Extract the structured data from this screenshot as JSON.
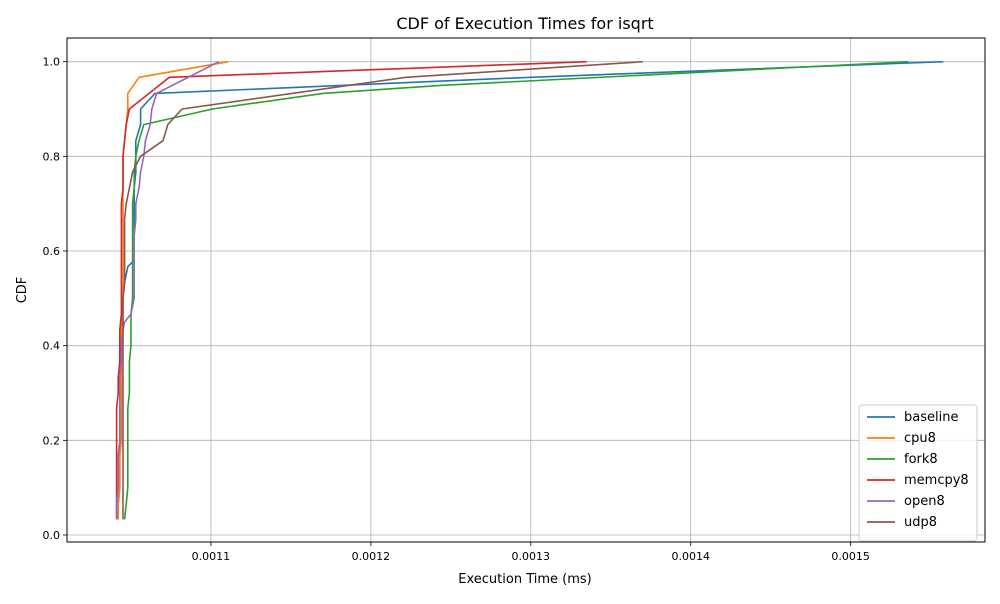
{
  "chart_data": {
    "type": "line",
    "title": "CDF of Execution Times for isqrt",
    "xlabel": "Execution Time (ms)",
    "ylabel": "CDF",
    "xlim": [
      0.00101,
      0.001584
    ],
    "ylim": [
      -0.0148,
      1.05
    ],
    "xticks": [
      0.0011,
      0.0012,
      0.0013,
      0.0014,
      0.0015
    ],
    "xtick_labels": [
      "0.0011",
      "0.0012",
      "0.0013",
      "0.0014",
      "0.0015"
    ],
    "yticks": [
      0.0,
      0.2,
      0.4,
      0.6,
      0.8,
      1.0
    ],
    "ytick_labels": [
      "0.0",
      "0.2",
      "0.4",
      "0.6",
      "0.8",
      "1.0"
    ],
    "grid": true,
    "legend_position": "lower-right",
    "series": [
      {
        "name": "baseline",
        "color": "#1f77b4",
        "points": [
          [
            0.001042,
            0.033
          ],
          [
            0.001042,
            0.065
          ],
          [
            0.001043,
            0.1
          ],
          [
            0.001043,
            0.13
          ],
          [
            0.001043,
            0.167
          ],
          [
            0.001043,
            0.2
          ],
          [
            0.001043,
            0.233
          ],
          [
            0.001043,
            0.267
          ],
          [
            0.001043,
            0.3
          ],
          [
            0.001043,
            0.333
          ],
          [
            0.001044,
            0.367
          ],
          [
            0.001044,
            0.4
          ],
          [
            0.001044,
            0.433
          ],
          [
            0.001044,
            0.467
          ],
          [
            0.001045,
            0.5
          ],
          [
            0.001046,
            0.533
          ],
          [
            0.001048,
            0.567
          ],
          [
            0.001052,
            0.58
          ],
          [
            0.001052,
            0.6
          ],
          [
            0.001052,
            0.633
          ],
          [
            0.001052,
            0.667
          ],
          [
            0.001052,
            0.7
          ],
          [
            0.001052,
            0.733
          ],
          [
            0.001053,
            0.767
          ],
          [
            0.001053,
            0.8
          ],
          [
            0.001053,
            0.833
          ],
          [
            0.001056,
            0.867
          ],
          [
            0.001056,
            0.9
          ],
          [
            0.001065,
            0.933
          ],
          [
            0.0013,
            0.967
          ],
          [
            0.001558,
            1.0
          ]
        ]
      },
      {
        "name": "cpu8",
        "color": "#ff7f0e",
        "points": [
          [
            0.001042,
            0.033
          ],
          [
            0.001042,
            0.065
          ],
          [
            0.001043,
            0.1
          ],
          [
            0.001043,
            0.13
          ],
          [
            0.001043,
            0.167
          ],
          [
            0.001044,
            0.2
          ],
          [
            0.001044,
            0.233
          ],
          [
            0.001044,
            0.267
          ],
          [
            0.001044,
            0.3
          ],
          [
            0.001044,
            0.333
          ],
          [
            0.001044,
            0.367
          ],
          [
            0.001044,
            0.4
          ],
          [
            0.001044,
            0.433
          ],
          [
            0.001045,
            0.467
          ],
          [
            0.001045,
            0.5
          ],
          [
            0.001045,
            0.533
          ],
          [
            0.001045,
            0.567
          ],
          [
            0.001045,
            0.6
          ],
          [
            0.001045,
            0.633
          ],
          [
            0.001045,
            0.667
          ],
          [
            0.001045,
            0.7
          ],
          [
            0.001045,
            0.733
          ],
          [
            0.001045,
            0.767
          ],
          [
            0.001045,
            0.8
          ],
          [
            0.001046,
            0.833
          ],
          [
            0.001047,
            0.867
          ],
          [
            0.001048,
            0.9
          ],
          [
            0.001048,
            0.933
          ],
          [
            0.001055,
            0.967
          ],
          [
            0.001111,
            1.0
          ]
        ]
      },
      {
        "name": "fork8",
        "color": "#2ca02c",
        "points": [
          [
            0.001046,
            0.033
          ],
          [
            0.001047,
            0.065
          ],
          [
            0.001048,
            0.1
          ],
          [
            0.001048,
            0.13
          ],
          [
            0.001048,
            0.167
          ],
          [
            0.001048,
            0.2
          ],
          [
            0.001048,
            0.233
          ],
          [
            0.001048,
            0.267
          ],
          [
            0.001049,
            0.3
          ],
          [
            0.001049,
            0.333
          ],
          [
            0.001049,
            0.367
          ],
          [
            0.00105,
            0.4
          ],
          [
            0.00105,
            0.433
          ],
          [
            0.00105,
            0.467
          ],
          [
            0.001051,
            0.5
          ],
          [
            0.001051,
            0.533
          ],
          [
            0.001051,
            0.567
          ],
          [
            0.001051,
            0.6
          ],
          [
            0.001051,
            0.633
          ],
          [
            0.001051,
            0.667
          ],
          [
            0.001051,
            0.7
          ],
          [
            0.001052,
            0.733
          ],
          [
            0.001052,
            0.767
          ],
          [
            0.001053,
            0.8
          ],
          [
            0.001055,
            0.833
          ],
          [
            0.001058,
            0.867
          ],
          [
            0.001101,
            0.9
          ],
          [
            0.00117,
            0.933
          ],
          [
            0.001245,
            0.95
          ],
          [
            0.001536,
            1.0
          ]
        ]
      },
      {
        "name": "memcpy8",
        "color": "#d62728",
        "points": [
          [
            0.001041,
            0.033
          ],
          [
            0.001041,
            0.065
          ],
          [
            0.001041,
            0.1
          ],
          [
            0.001041,
            0.13
          ],
          [
            0.001041,
            0.167
          ],
          [
            0.001041,
            0.2
          ],
          [
            0.001041,
            0.233
          ],
          [
            0.001041,
            0.267
          ],
          [
            0.001042,
            0.3
          ],
          [
            0.001042,
            0.333
          ],
          [
            0.001043,
            0.367
          ],
          [
            0.001043,
            0.4
          ],
          [
            0.001043,
            0.433
          ],
          [
            0.001044,
            0.467
          ],
          [
            0.001044,
            0.5
          ],
          [
            0.001044,
            0.533
          ],
          [
            0.001044,
            0.567
          ],
          [
            0.001044,
            0.6
          ],
          [
            0.001044,
            0.633
          ],
          [
            0.001044,
            0.667
          ],
          [
            0.001044,
            0.7
          ],
          [
            0.001045,
            0.733
          ],
          [
            0.001045,
            0.767
          ],
          [
            0.001045,
            0.8
          ],
          [
            0.001046,
            0.833
          ],
          [
            0.001047,
            0.867
          ],
          [
            0.001049,
            0.9
          ],
          [
            0.001074,
            0.967
          ],
          [
            0.001335,
            1.0
          ]
        ]
      },
      {
        "name": "open8",
        "color": "#9467bd",
        "points": [
          [
            0.001041,
            0.033
          ],
          [
            0.001041,
            0.065
          ],
          [
            0.001042,
            0.1
          ],
          [
            0.001042,
            0.13
          ],
          [
            0.001042,
            0.167
          ],
          [
            0.001043,
            0.2
          ],
          [
            0.001043,
            0.233
          ],
          [
            0.001043,
            0.267
          ],
          [
            0.001043,
            0.3
          ],
          [
            0.001043,
            0.333
          ],
          [
            0.001044,
            0.367
          ],
          [
            0.001044,
            0.4
          ],
          [
            0.001045,
            0.433
          ],
          [
            0.001046,
            0.45
          ],
          [
            0.00105,
            0.467
          ],
          [
            0.001052,
            0.5
          ],
          [
            0.001052,
            0.533
          ],
          [
            0.001052,
            0.567
          ],
          [
            0.001052,
            0.6
          ],
          [
            0.001052,
            0.633
          ],
          [
            0.001053,
            0.667
          ],
          [
            0.001053,
            0.7
          ],
          [
            0.001055,
            0.733
          ],
          [
            0.001056,
            0.767
          ],
          [
            0.001058,
            0.8
          ],
          [
            0.001059,
            0.833
          ],
          [
            0.001062,
            0.867
          ],
          [
            0.001063,
            0.9
          ],
          [
            0.001066,
            0.933
          ],
          [
            0.001105,
            1.0
          ]
        ]
      },
      {
        "name": "udp8",
        "color": "#8c564b",
        "points": [
          [
            0.001045,
            0.033
          ],
          [
            0.001045,
            0.065
          ],
          [
            0.001045,
            0.1
          ],
          [
            0.001045,
            0.13
          ],
          [
            0.001045,
            0.167
          ],
          [
            0.001045,
            0.2
          ],
          [
            0.001045,
            0.233
          ],
          [
            0.001045,
            0.267
          ],
          [
            0.001045,
            0.3
          ],
          [
            0.001045,
            0.333
          ],
          [
            0.001045,
            0.367
          ],
          [
            0.001045,
            0.4
          ],
          [
            0.001045,
            0.433
          ],
          [
            0.001045,
            0.467
          ],
          [
            0.001045,
            0.5
          ],
          [
            0.001046,
            0.533
          ],
          [
            0.001046,
            0.567
          ],
          [
            0.001046,
            0.6
          ],
          [
            0.001046,
            0.633
          ],
          [
            0.001046,
            0.667
          ],
          [
            0.001047,
            0.7
          ],
          [
            0.001049,
            0.733
          ],
          [
            0.001051,
            0.767
          ],
          [
            0.001056,
            0.8
          ],
          [
            0.00107,
            0.833
          ],
          [
            0.001073,
            0.867
          ],
          [
            0.001082,
            0.9
          ],
          [
            0.001222,
            0.967
          ],
          [
            0.00137,
            1.0
          ]
        ]
      }
    ]
  }
}
